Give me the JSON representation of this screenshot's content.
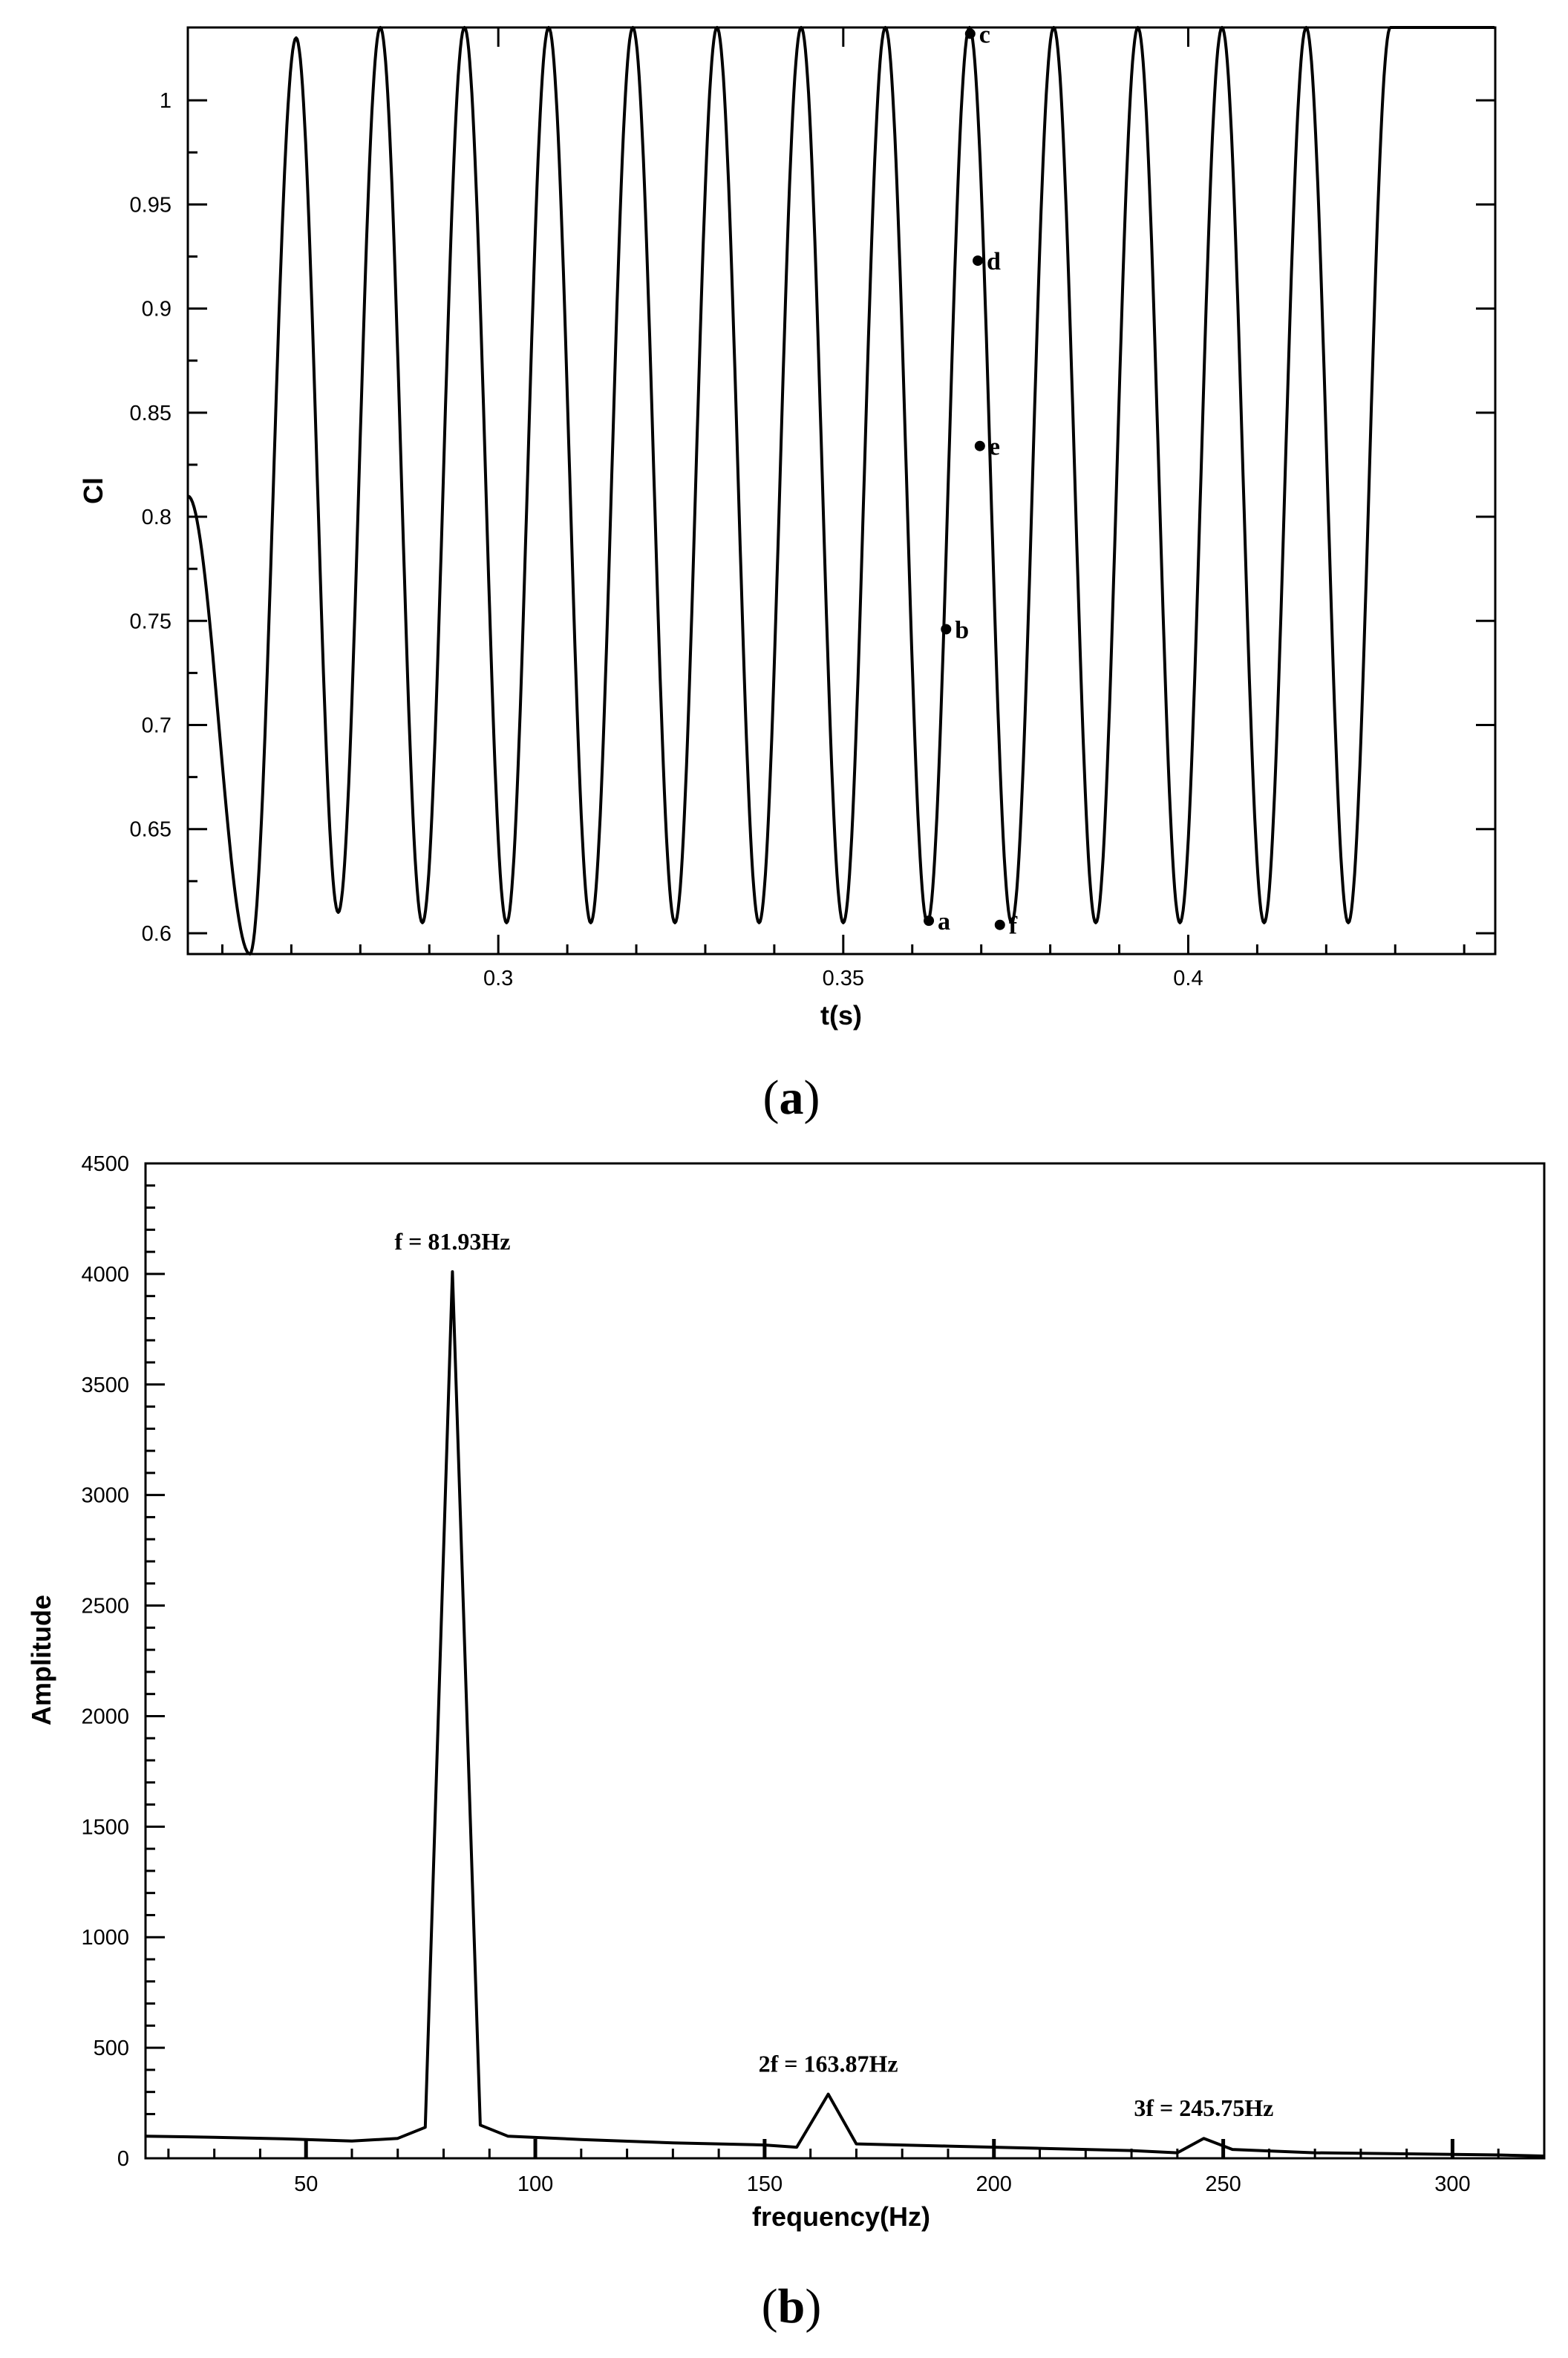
{
  "chart_data": [
    {
      "panel_label": "a",
      "type": "line",
      "xlabel": "t(s)",
      "ylabel": "Cl",
      "xlim": [
        0.255,
        0.4445
      ],
      "ylim": [
        0.59,
        1.035
      ],
      "x_ticks": [
        0.3,
        0.35,
        0.4
      ],
      "x_tick_labels": [
        "0.3",
        "0.35",
        "0.4"
      ],
      "y_ticks": [
        0.6,
        0.65,
        0.7,
        0.75,
        0.8,
        0.85,
        0.9,
        0.95,
        1.0
      ],
      "y_tick_labels": [
        "0.6",
        "0.65",
        "0.7",
        "0.75",
        "0.8",
        "0.85",
        "0.9",
        "0.95",
        "1"
      ],
      "grid": false,
      "series": [
        {
          "signal": "periodic Cl(t) oscillation",
          "frequency_hz": 81.93,
          "peaks": [
            {
              "t": 0.2707,
              "cl": 1.03
            },
            {
              "t": 0.2829,
              "cl": 1.035
            },
            {
              "t": 0.2951,
              "cl": 1.035
            },
            {
              "t": 0.3073,
              "cl": 1.035
            },
            {
              "t": 0.3195,
              "cl": 1.035
            },
            {
              "t": 0.3317,
              "cl": 1.035
            },
            {
              "t": 0.3439,
              "cl": 1.035
            },
            {
              "t": 0.3561,
              "cl": 1.035
            },
            {
              "t": 0.3683,
              "cl": 1.035
            },
            {
              "t": 0.3805,
              "cl": 1.035
            },
            {
              "t": 0.3927,
              "cl": 1.035
            },
            {
              "t": 0.4049,
              "cl": 1.035
            },
            {
              "t": 0.4171,
              "cl": 1.035
            },
            {
              "t": 0.4293,
              "cl": 1.035
            },
            {
              "t": 0.4415,
              "cl": 1.035
            }
          ],
          "troughs": [
            {
              "t": 0.264,
              "cl": 0.59
            },
            {
              "t": 0.2768,
              "cl": 0.61
            },
            {
              "t": 0.289,
              "cl": 0.605
            },
            {
              "t": 0.3012,
              "cl": 0.605
            },
            {
              "t": 0.3134,
              "cl": 0.605
            },
            {
              "t": 0.3256,
              "cl": 0.605
            },
            {
              "t": 0.3378,
              "cl": 0.605
            },
            {
              "t": 0.35,
              "cl": 0.605
            },
            {
              "t": 0.3622,
              "cl": 0.605
            },
            {
              "t": 0.3744,
              "cl": 0.605
            },
            {
              "t": 0.3866,
              "cl": 0.605
            },
            {
              "t": 0.3988,
              "cl": 0.605
            },
            {
              "t": 0.411,
              "cl": 0.605
            },
            {
              "t": 0.4232,
              "cl": 0.605
            }
          ],
          "start": {
            "t": 0.255,
            "cl": 0.81
          }
        }
      ],
      "points": [
        {
          "label": "a",
          "t": 0.3624,
          "cl": 0.606
        },
        {
          "label": "b",
          "t": 0.3649,
          "cl": 0.746
        },
        {
          "label": "c",
          "t": 0.3684,
          "cl": 1.032
        },
        {
          "label": "d",
          "t": 0.3695,
          "cl": 0.923
        },
        {
          "label": "e",
          "t": 0.3698,
          "cl": 0.834
        },
        {
          "label": "f",
          "t": 0.3727,
          "cl": 0.604
        }
      ]
    },
    {
      "panel_label": "b",
      "type": "line",
      "xlabel": "frequency(Hz)",
      "ylabel": "Amplitude",
      "xlim": [
        15,
        320
      ],
      "ylim": [
        0,
        4500
      ],
      "x_ticks": [
        50,
        100,
        150,
        200,
        250,
        300
      ],
      "x_tick_labels": [
        "50",
        "100",
        "150",
        "200",
        "250",
        "300"
      ],
      "y_ticks": [
        0,
        500,
        1000,
        1500,
        2000,
        2500,
        3000,
        3500,
        4000,
        4500
      ],
      "y_tick_labels": [
        "0",
        "500",
        "1000",
        "1500",
        "2000",
        "2500",
        "3000",
        "3500",
        "4000",
        "4500"
      ],
      "grid": false,
      "series": [
        {
          "x": [
            15,
            30,
            45,
            60,
            70,
            76,
            81.93,
            88,
            94,
            110,
            130,
            150,
            157,
            163.87,
            170,
            190,
            210,
            230,
            240,
            245.75,
            252,
            270,
            290,
            310,
            320
          ],
          "values": [
            100,
            95,
            88,
            78,
            90,
            140,
            4010,
            150,
            100,
            85,
            70,
            60,
            50,
            290,
            65,
            55,
            45,
            35,
            25,
            90,
            40,
            25,
            20,
            15,
            10
          ]
        }
      ],
      "annotations": [
        {
          "text": "f = 81.93Hz",
          "x": 81.93,
          "y": 4010
        },
        {
          "text": "2f = 163.87Hz",
          "x": 163.87,
          "y": 290
        },
        {
          "text": "3f = 245.75Hz",
          "x": 245.75,
          "y": 90
        }
      ]
    }
  ]
}
